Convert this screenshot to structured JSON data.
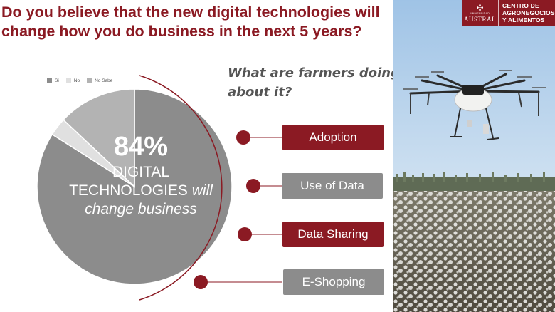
{
  "slide": {
    "title_line1": "Do you believe that the new digital technologies will",
    "title_line2": "change how you do business in the next 5 years?",
    "subtitle_line1": "What are farmers doing",
    "subtitle_line2": "about it?",
    "center": {
      "percent": "84%",
      "line1": "DIGITAL",
      "line2_prefix": "TECHNOLOGIES ",
      "line2_emph": "will",
      "line3": "change business"
    },
    "buttons": [
      {
        "label": "Adoption",
        "style": "accent"
      },
      {
        "label": "Use of Data",
        "style": "muted"
      },
      {
        "label": "Data Sharing",
        "style": "accent"
      },
      {
        "label": "E-Shopping",
        "style": "muted"
      }
    ],
    "logo": {
      "university_small": "UNIVERSIDAD",
      "university": "AUSTRAL",
      "org_line1": "CENTRO DE",
      "org_line2": "AGRONEGOCIOS",
      "org_line3": "Y ALIMENTOS"
    }
  },
  "colors": {
    "accent": "#8b1a23",
    "muted": "#8c8c8c",
    "si": "#8c8c8c",
    "no": "#e0e0e0",
    "no_sabe": "#b3b3b3"
  },
  "chart_data": {
    "type": "pie",
    "categories": [
      "Si",
      "No",
      "No Sabe"
    ],
    "values": [
      84,
      3,
      13
    ],
    "unit": "%",
    "legend_position": "top-left"
  }
}
